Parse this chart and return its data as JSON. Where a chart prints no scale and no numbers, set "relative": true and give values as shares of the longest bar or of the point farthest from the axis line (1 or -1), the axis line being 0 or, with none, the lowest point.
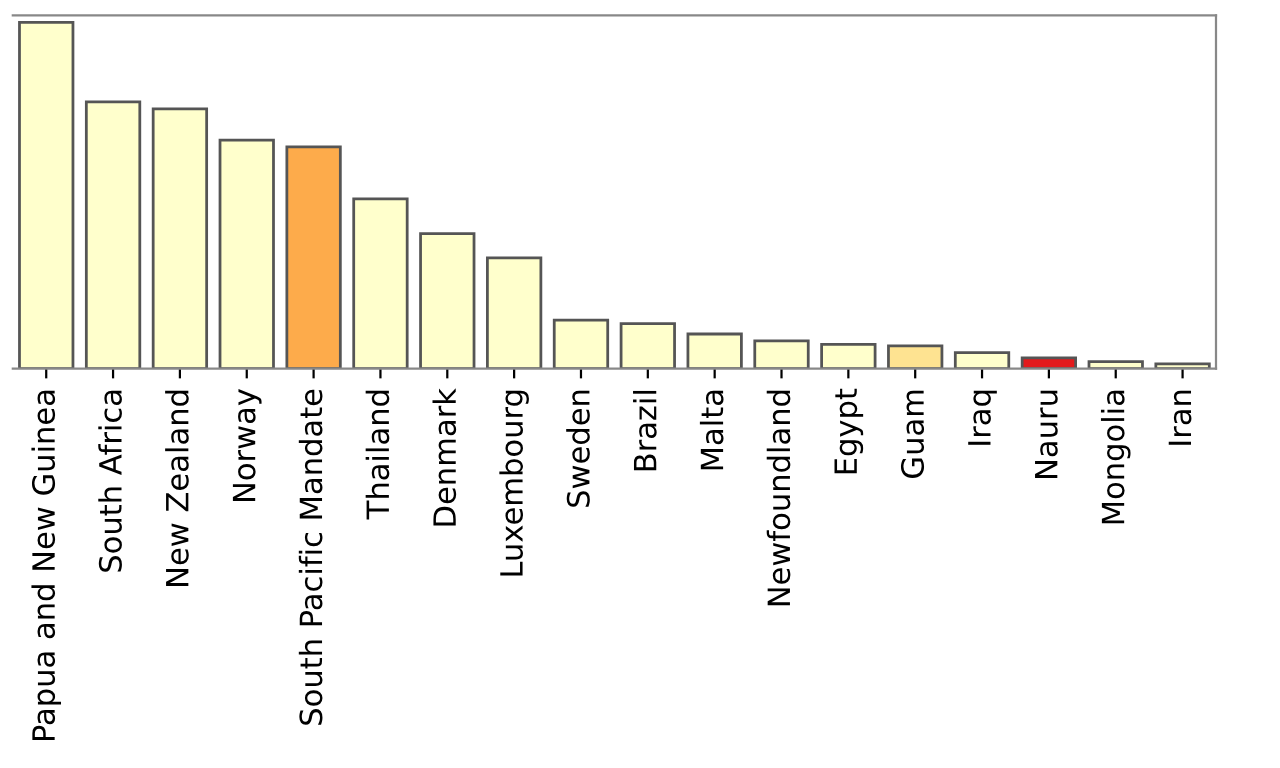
{
  "chart_data": {
    "type": "bar",
    "relative": true,
    "categories": [
      "Papua and New Guinea",
      "South Africa",
      "New Zealand",
      "Norway",
      "South Pacific Mandate",
      "Thailand",
      "Denmark",
      "Luxembourg",
      "Sweden",
      "Brazil",
      "Malta",
      "Newfoundland",
      "Egypt",
      "Guam",
      "Iraq",
      "Nauru",
      "Mongolia",
      "Iran"
    ],
    "values": [
      1,
      0.77,
      0.75,
      0.66,
      0.64,
      0.49,
      0.39,
      0.32,
      0.14,
      0.13,
      0.1,
      0.08,
      0.07,
      0.066,
      0.046,
      0.031,
      0.02,
      0.014
    ],
    "colors": [
      "#ffffcc",
      "#ffffcc",
      "#ffffcc",
      "#ffffcc",
      "#fdab4b",
      "#ffffcc",
      "#ffffcc",
      "#ffffcc",
      "#ffffcc",
      "#ffffcc",
      "#ffffcc",
      "#ffffcc",
      "#ffffcc",
      "#fee391",
      "#ffffcc",
      "#e31a1c",
      "#ffffcc",
      "#ffffcc"
    ],
    "grid": false,
    "legend": false
  }
}
